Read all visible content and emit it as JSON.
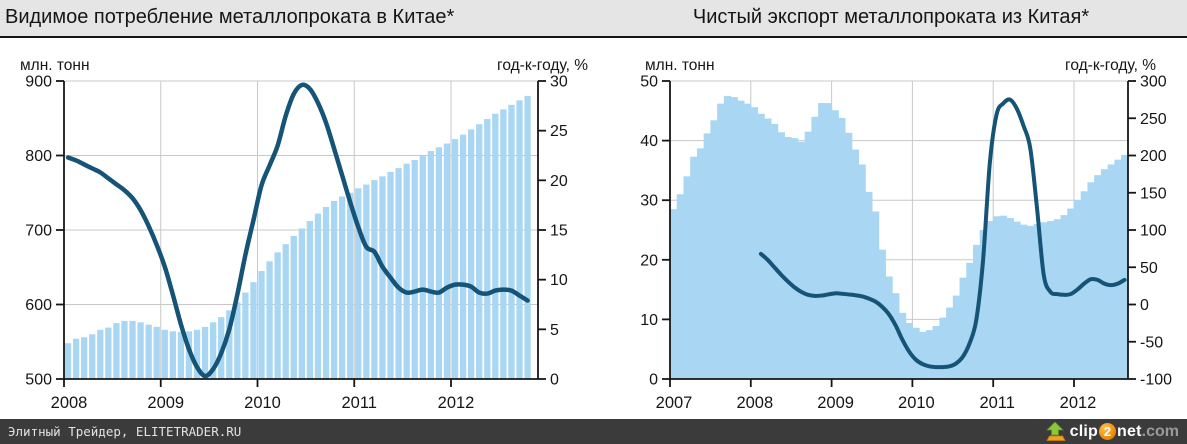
{
  "colors": {
    "bar_fill": "#a8d6f3",
    "line_stroke": "#155476",
    "grid": "#c8c8c8",
    "axis": "#161616",
    "header_bg": "#e5e5e5",
    "footer_bg": "#3b3b3b"
  },
  "footer": {
    "credit": "Элитный Трейдер, ELITETRADER.RU",
    "logo": {
      "clip": "clip",
      "two": "2",
      "net": "net",
      "com": ".com"
    }
  },
  "chart_data": [
    {
      "type": "bar+line",
      "title": "Видимое потребление металлопроката в Китае*",
      "x": {
        "interval": "monthly",
        "start": "2008-01",
        "end": "2012-10",
        "tick_labels": [
          "2008",
          "2009",
          "2010",
          "2011",
          "2012"
        ]
      },
      "left_axis": {
        "caption": "млн. тонн",
        "range": [
          500,
          900
        ],
        "ticks": [
          900,
          800,
          700,
          600,
          500
        ]
      },
      "right_axis": {
        "caption": "год-к-году, %",
        "range": [
          0,
          30
        ],
        "ticks": [
          30,
          25,
          20,
          15,
          10,
          5,
          0
        ]
      },
      "grid": true,
      "legend": "none",
      "series": [
        {
          "name": "consumption-mln-tonn",
          "type": "bar",
          "axis": "left",
          "values": [
            548,
            554,
            556,
            560,
            566,
            569,
            575,
            578,
            578,
            576,
            573,
            570,
            566,
            564,
            563,
            564,
            566,
            570,
            576,
            583,
            592,
            603,
            616,
            630,
            645,
            658,
            670,
            681,
            692,
            702,
            712,
            722,
            731,
            739,
            745,
            750,
            756,
            761,
            767,
            772,
            778,
            783,
            789,
            794,
            800,
            806,
            811,
            816,
            822,
            828,
            835,
            842,
            849,
            856,
            862,
            868,
            874,
            880
          ]
        },
        {
          "name": "yoy-growth-pct",
          "type": "line",
          "axis": "right",
          "values": [
            22.3,
            22.0,
            21.6,
            21.2,
            20.8,
            20.2,
            19.6,
            19.0,
            18.2,
            17.0,
            15.4,
            13.5,
            11.3,
            8.5,
            5.5,
            3.0,
            1.2,
            0.3,
            1.0,
            2.6,
            5.0,
            8.5,
            12.5,
            16.0,
            19.5,
            21.5,
            23.5,
            26.5,
            28.7,
            29.6,
            29.2,
            27.8,
            25.8,
            23.2,
            20.5,
            17.8,
            15.3,
            13.3,
            12.8,
            11.3,
            10.2,
            9.2,
            8.7,
            8.8,
            9.0,
            8.8,
            8.7,
            9.2,
            9.5,
            9.5,
            9.3,
            8.7,
            8.6,
            8.9,
            9.0,
            8.9,
            8.4,
            7.9
          ]
        }
      ]
    },
    {
      "type": "area+line",
      "title": "Чистый экспорт металлопроката из Китая*",
      "x": {
        "interval": "monthly",
        "start": "2007-01",
        "end": "2012-08",
        "tick_labels": [
          "2007",
          "2008",
          "2009",
          "2010",
          "2011",
          "2012"
        ]
      },
      "left_axis": {
        "caption": "млн. тонн",
        "range": [
          0,
          50
        ],
        "ticks": [
          50,
          40,
          30,
          20,
          10,
          0
        ]
      },
      "right_axis": {
        "caption": "год-к-году, %",
        "range": [
          -100,
          300
        ],
        "ticks": [
          300,
          250,
          200,
          150,
          100,
          50,
          0,
          -50,
          -100
        ]
      },
      "grid": true,
      "legend": "none",
      "series": [
        {
          "name": "net-export-mln-tonn",
          "type": "area",
          "axis": "left",
          "values": [
            28.5,
            31.0,
            34.0,
            37.3,
            38.7,
            41.2,
            43.4,
            46.2,
            47.5,
            47.3,
            46.7,
            46.2,
            45.6,
            44.5,
            43.7,
            42.8,
            41.4,
            40.6,
            40.4,
            39.8,
            41.5,
            44.0,
            46.3,
            46.3,
            45.1,
            43.8,
            41.3,
            38.5,
            36.0,
            31.4,
            28.1,
            21.7,
            17.2,
            14.4,
            11.1,
            9.4,
            8.6,
            7.9,
            8.2,
            8.9,
            10.3,
            12.0,
            14.0,
            17.0,
            19.5,
            22.5,
            25.0,
            26.5,
            27.3,
            27.4,
            27.0,
            26.4,
            25.9,
            25.7,
            26.0,
            26.3,
            26.5,
            26.8,
            27.5,
            28.6,
            30.0,
            31.5,
            33.0,
            34.2,
            35.2,
            36.0,
            36.8,
            37.6
          ]
        },
        {
          "name": "yoy-growth-pct",
          "type": "line",
          "axis": "right",
          "values": [
            null,
            null,
            null,
            null,
            null,
            null,
            null,
            null,
            null,
            null,
            null,
            null,
            null,
            68,
            60,
            50,
            40,
            31,
            23,
            17,
            13,
            11.5,
            12,
            13.5,
            15,
            14.5,
            13.5,
            12.5,
            11,
            8,
            4,
            -3,
            -13,
            -28,
            -47,
            -63,
            -74,
            -80,
            -83,
            -84,
            -84,
            -83,
            -79,
            -70,
            -52,
            -20,
            60,
            190,
            255,
            270,
            275,
            263,
            240,
            210,
            130,
            40,
            17,
            14,
            13,
            14,
            20,
            28,
            34,
            33,
            28,
            26,
            28,
            33
          ]
        }
      ]
    }
  ]
}
